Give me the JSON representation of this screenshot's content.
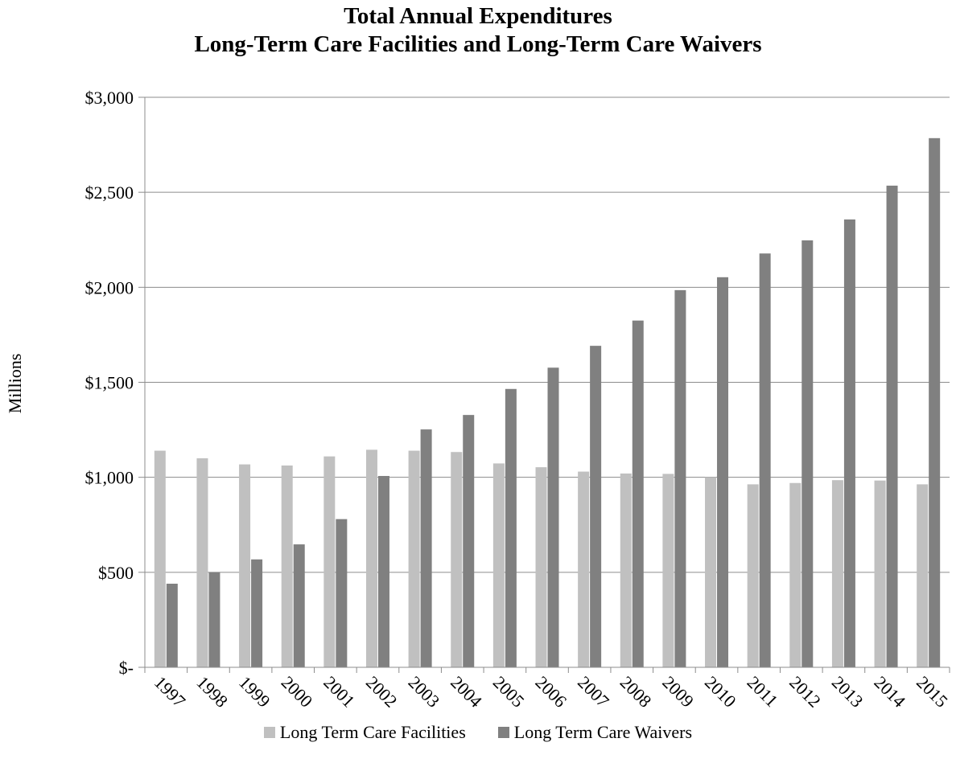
{
  "chart_data": {
    "type": "bar",
    "title": "Total Annual Expenditures",
    "subtitle": "Long-Term Care Facilities and Long-Term Care Waivers",
    "ylabel": "Millions",
    "xlabel": "",
    "ylim": [
      0,
      3000
    ],
    "yticks": [
      0,
      500,
      1000,
      1500,
      2000,
      2500,
      3000
    ],
    "ytick_labels": [
      "$-",
      "$500",
      "$1,000",
      "$1,500",
      "$2,000",
      "$2,500",
      "$3,000"
    ],
    "grid": true,
    "legend_position": "bottom",
    "categories": [
      "1997",
      "1998",
      "1999",
      "2000",
      "2001",
      "2002",
      "2003",
      "2004",
      "2005",
      "2006",
      "2007",
      "2008",
      "2009",
      "2010",
      "2011",
      "2012",
      "2013",
      "2014",
      "2015"
    ],
    "series": [
      {
        "name": "Long Term Care Facilities",
        "color": "#c0c0c0",
        "values": [
          1140,
          1100,
          1068,
          1062,
          1110,
          1145,
          1140,
          1133,
          1073,
          1053,
          1030,
          1020,
          1018,
          1000,
          963,
          970,
          985,
          983,
          963
        ]
      },
      {
        "name": "Long Term Care Waivers",
        "color": "#808080",
        "values": [
          440,
          500,
          568,
          647,
          780,
          1007,
          1252,
          1328,
          1465,
          1577,
          1692,
          1825,
          1985,
          2053,
          2178,
          2247,
          2357,
          2535,
          2785
        ]
      }
    ]
  }
}
